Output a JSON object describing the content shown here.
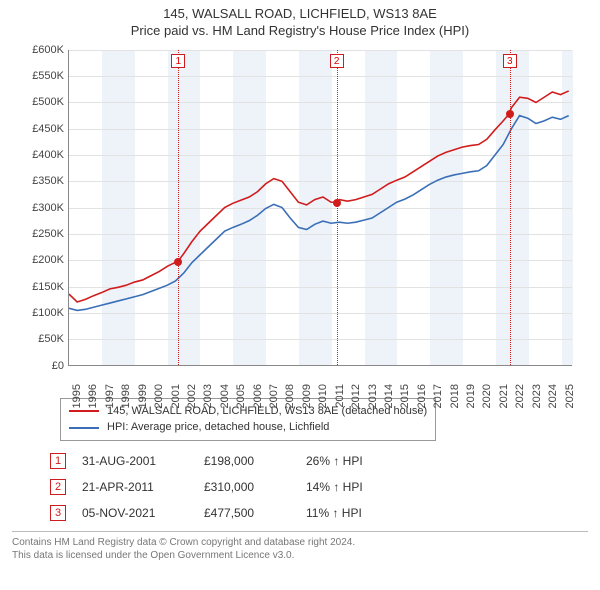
{
  "title_line1": "145, WALSALL ROAD, LICHFIELD, WS13 8AE",
  "title_line2": "Price paid vs. HM Land Registry's House Price Index (HPI)",
  "chart": {
    "type": "line",
    "x_start_year": 1995,
    "x_end_year": 2025.7,
    "x_ticks": [
      1995,
      1996,
      1997,
      1998,
      1999,
      2000,
      2001,
      2002,
      2003,
      2004,
      2005,
      2006,
      2007,
      2008,
      2009,
      2010,
      2011,
      2012,
      2013,
      2014,
      2015,
      2016,
      2017,
      2018,
      2019,
      2020,
      2021,
      2022,
      2023,
      2024,
      2025
    ],
    "y_min": 0,
    "y_max": 600000,
    "y_step": 50000,
    "y_prefix": "£",
    "y_suffix": "K",
    "band_color": "#eef3fa",
    "grid_color": "#e2e2e2",
    "axis_color": "#888888",
    "background_color": "#ffffff",
    "bands_alternate_start": 1995,
    "bands_width_years": 2,
    "series": [
      {
        "name": "145, WALSALL ROAD, LICHFIELD, WS13 8AE (detached house)",
        "color": "#d01c1c",
        "line_width": 1.6,
        "points": [
          [
            1995.0,
            135000
          ],
          [
            1995.5,
            120000
          ],
          [
            1996.0,
            125000
          ],
          [
            1996.5,
            132000
          ],
          [
            1997.0,
            138000
          ],
          [
            1997.5,
            145000
          ],
          [
            1998.0,
            148000
          ],
          [
            1998.5,
            152000
          ],
          [
            1999.0,
            158000
          ],
          [
            1999.5,
            162000
          ],
          [
            2000.0,
            170000
          ],
          [
            2000.5,
            178000
          ],
          [
            2001.0,
            188000
          ],
          [
            2001.66,
            198000
          ],
          [
            2002.0,
            212000
          ],
          [
            2002.5,
            235000
          ],
          [
            2003.0,
            255000
          ],
          [
            2003.5,
            270000
          ],
          [
            2004.0,
            285000
          ],
          [
            2004.5,
            300000
          ],
          [
            2005.0,
            308000
          ],
          [
            2005.5,
            314000
          ],
          [
            2006.0,
            320000
          ],
          [
            2006.5,
            330000
          ],
          [
            2007.0,
            345000
          ],
          [
            2007.5,
            355000
          ],
          [
            2008.0,
            350000
          ],
          [
            2008.5,
            330000
          ],
          [
            2009.0,
            310000
          ],
          [
            2009.5,
            305000
          ],
          [
            2010.0,
            315000
          ],
          [
            2010.5,
            320000
          ],
          [
            2011.0,
            310000
          ],
          [
            2011.3,
            310000
          ],
          [
            2011.5,
            315000
          ],
          [
            2012.0,
            312000
          ],
          [
            2012.5,
            315000
          ],
          [
            2013.0,
            320000
          ],
          [
            2013.5,
            325000
          ],
          [
            2014.0,
            335000
          ],
          [
            2014.5,
            345000
          ],
          [
            2015.0,
            352000
          ],
          [
            2015.5,
            358000
          ],
          [
            2016.0,
            368000
          ],
          [
            2016.5,
            378000
          ],
          [
            2017.0,
            388000
          ],
          [
            2017.5,
            398000
          ],
          [
            2018.0,
            405000
          ],
          [
            2018.5,
            410000
          ],
          [
            2019.0,
            415000
          ],
          [
            2019.5,
            418000
          ],
          [
            2020.0,
            420000
          ],
          [
            2020.5,
            430000
          ],
          [
            2021.0,
            448000
          ],
          [
            2021.5,
            465000
          ],
          [
            2021.85,
            477500
          ],
          [
            2022.0,
            490000
          ],
          [
            2022.5,
            510000
          ],
          [
            2023.0,
            508000
          ],
          [
            2023.5,
            500000
          ],
          [
            2024.0,
            510000
          ],
          [
            2024.5,
            520000
          ],
          [
            2025.0,
            515000
          ],
          [
            2025.5,
            522000
          ]
        ]
      },
      {
        "name": "HPI: Average price, detached house, Lichfield",
        "color": "#3a6fb7",
        "line_width": 1.6,
        "points": [
          [
            1995.0,
            108000
          ],
          [
            1995.5,
            104000
          ],
          [
            1996.0,
            106000
          ],
          [
            1996.5,
            110000
          ],
          [
            1997.0,
            114000
          ],
          [
            1997.5,
            118000
          ],
          [
            1998.0,
            122000
          ],
          [
            1998.5,
            126000
          ],
          [
            1999.0,
            130000
          ],
          [
            1999.5,
            134000
          ],
          [
            2000.0,
            140000
          ],
          [
            2000.5,
            146000
          ],
          [
            2001.0,
            152000
          ],
          [
            2001.5,
            160000
          ],
          [
            2002.0,
            175000
          ],
          [
            2002.5,
            195000
          ],
          [
            2003.0,
            210000
          ],
          [
            2003.5,
            225000
          ],
          [
            2004.0,
            240000
          ],
          [
            2004.5,
            255000
          ],
          [
            2005.0,
            262000
          ],
          [
            2005.5,
            268000
          ],
          [
            2006.0,
            275000
          ],
          [
            2006.5,
            285000
          ],
          [
            2007.0,
            298000
          ],
          [
            2007.5,
            306000
          ],
          [
            2008.0,
            300000
          ],
          [
            2008.5,
            280000
          ],
          [
            2009.0,
            262000
          ],
          [
            2009.5,
            258000
          ],
          [
            2010.0,
            268000
          ],
          [
            2010.5,
            274000
          ],
          [
            2011.0,
            270000
          ],
          [
            2011.5,
            272000
          ],
          [
            2012.0,
            270000
          ],
          [
            2012.5,
            272000
          ],
          [
            2013.0,
            276000
          ],
          [
            2013.5,
            280000
          ],
          [
            2014.0,
            290000
          ],
          [
            2014.5,
            300000
          ],
          [
            2015.0,
            310000
          ],
          [
            2015.5,
            316000
          ],
          [
            2016.0,
            324000
          ],
          [
            2016.5,
            334000
          ],
          [
            2017.0,
            344000
          ],
          [
            2017.5,
            352000
          ],
          [
            2018.0,
            358000
          ],
          [
            2018.5,
            362000
          ],
          [
            2019.0,
            365000
          ],
          [
            2019.5,
            368000
          ],
          [
            2020.0,
            370000
          ],
          [
            2020.5,
            380000
          ],
          [
            2021.0,
            400000
          ],
          [
            2021.5,
            420000
          ],
          [
            2022.0,
            450000
          ],
          [
            2022.5,
            475000
          ],
          [
            2023.0,
            470000
          ],
          [
            2023.5,
            460000
          ],
          [
            2024.0,
            465000
          ],
          [
            2024.5,
            472000
          ],
          [
            2025.0,
            468000
          ],
          [
            2025.5,
            475000
          ]
        ]
      }
    ],
    "events": [
      {
        "n": "1",
        "date_label": "31-AUG-2001",
        "year": 2001.66,
        "value": 198000,
        "price_label": "£198,000",
        "delta_label": "26% ↑ HPI"
      },
      {
        "n": "2",
        "date_label": "21-APR-2011",
        "year": 2011.3,
        "value": 310000,
        "price_label": "£310,000",
        "delta_label": "14% ↑ HPI"
      },
      {
        "n": "3",
        "date_label": "05-NOV-2021",
        "year": 2021.85,
        "value": 477500,
        "price_label": "£477,500",
        "delta_label": "11% ↑ HPI"
      }
    ],
    "event_line_color": "#d01c1c",
    "event_box_border": "#d01c1c"
  },
  "legend": {
    "border_color": "#999999"
  },
  "footer": {
    "line1": "Contains HM Land Registry data © Crown copyright and database right 2024.",
    "line2": "This data is licensed under the Open Government Licence v3.0."
  }
}
